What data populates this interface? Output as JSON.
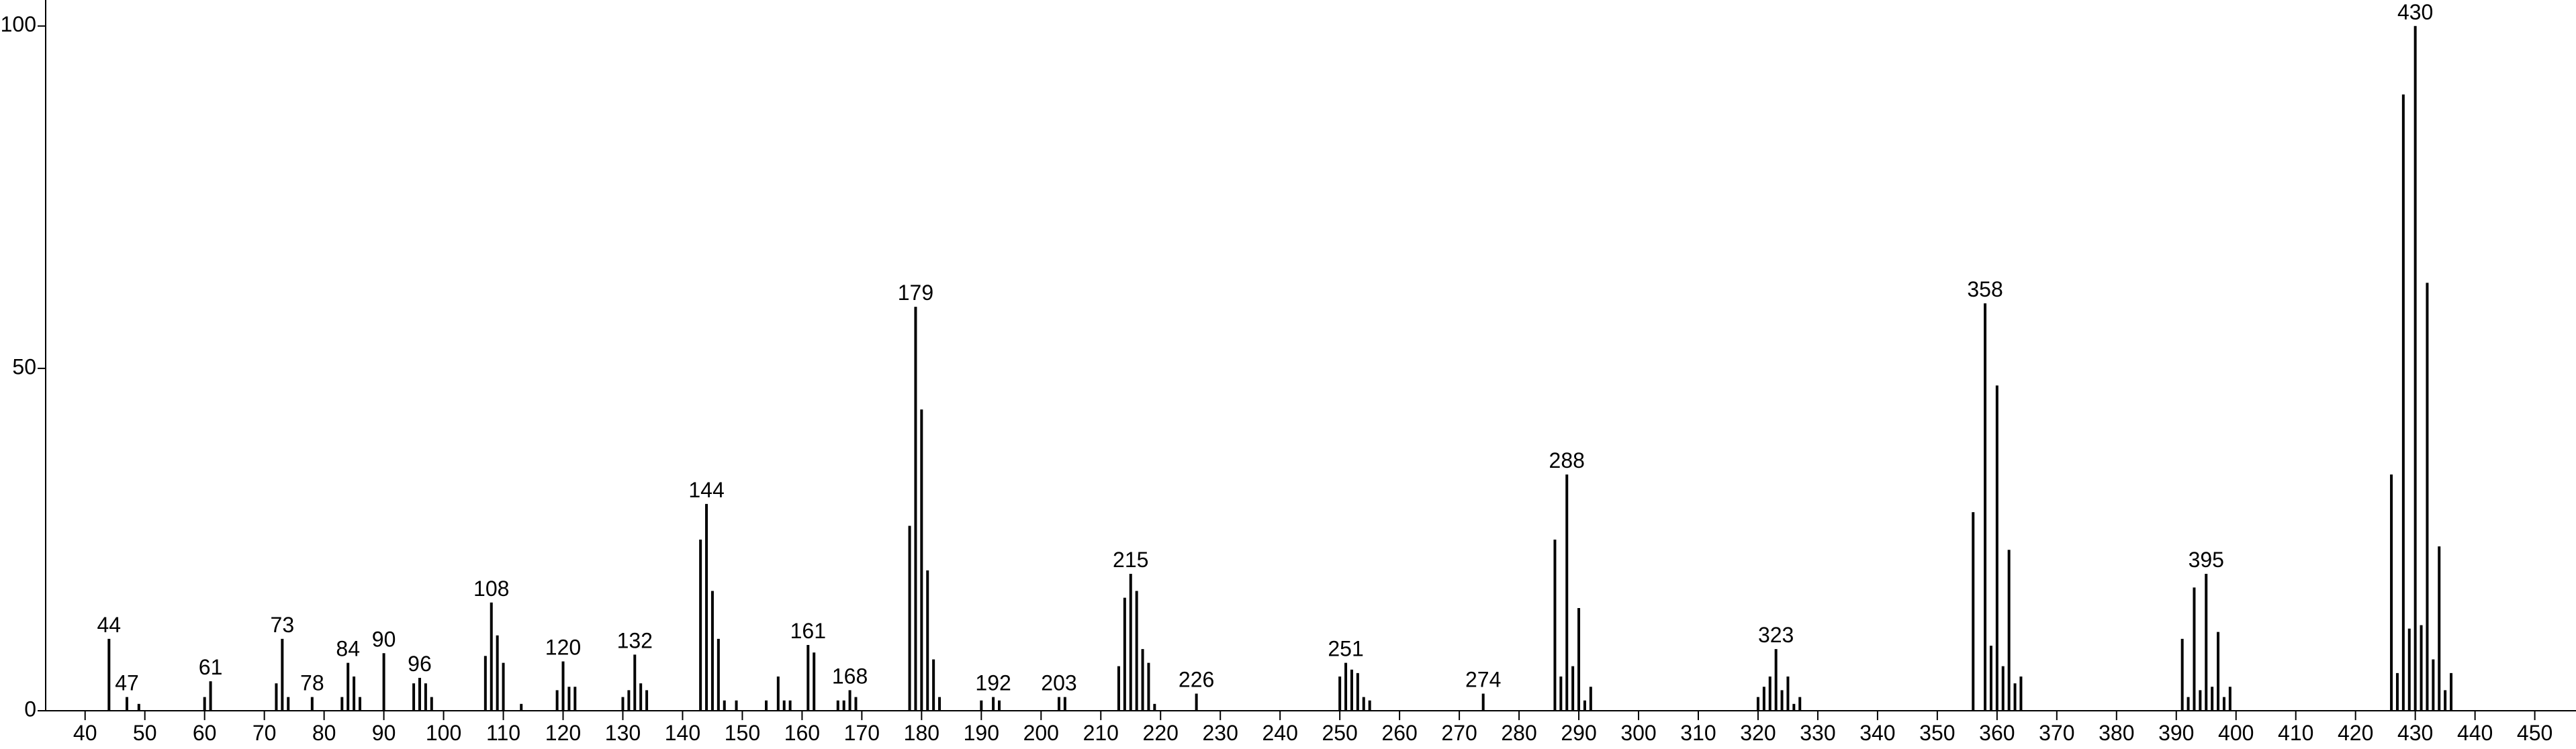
{
  "chart_data": {
    "type": "stem",
    "color": "#000000",
    "x": [
      44,
      47,
      49,
      60,
      61,
      72,
      73,
      74,
      78,
      83,
      84,
      85,
      86,
      90,
      95,
      96,
      97,
      98,
      107,
      108,
      109,
      110,
      113,
      119,
      120,
      121,
      122,
      130,
      131,
      132,
      133,
      134,
      143,
      144,
      145,
      146,
      147,
      149,
      154,
      156,
      157,
      158,
      161,
      162,
      166,
      167,
      168,
      169,
      178,
      179,
      180,
      181,
      182,
      183,
      190,
      192,
      193,
      203,
      204,
      213,
      214,
      215,
      216,
      217,
      218,
      219,
      226,
      250,
      251,
      252,
      253,
      254,
      255,
      274,
      286,
      287,
      288,
      289,
      290,
      291,
      292,
      320,
      321,
      322,
      323,
      324,
      325,
      326,
      327,
      356,
      358,
      359,
      360,
      361,
      362,
      363,
      364,
      391,
      392,
      393,
      394,
      395,
      396,
      397,
      398,
      399,
      426,
      427,
      428,
      429,
      430,
      431,
      432,
      433,
      434,
      435,
      436
    ],
    "values": [
      10.5,
      2,
      1,
      2,
      4.3,
      4,
      10.5,
      2,
      2,
      2,
      7,
      5,
      2,
      8.4,
      4,
      4.8,
      4,
      2,
      8,
      15.8,
      11,
      7,
      1,
      3,
      7.2,
      3.5,
      3.5,
      2,
      3,
      8.2,
      4,
      3,
      25,
      30.2,
      17.5,
      10.5,
      1.5,
      1.5,
      1.5,
      5,
      1.5,
      1.5,
      9.6,
      8.5,
      1.5,
      1.5,
      3,
      2,
      27,
      59,
      44,
      20.5,
      7.5,
      2,
      1.5,
      2,
      1.5,
      2,
      2,
      6.5,
      16.5,
      20,
      17.5,
      9,
      7,
      1,
      2.5,
      5,
      7,
      6,
      5.5,
      2,
      1.5,
      2.5,
      25,
      5,
      34.5,
      6.5,
      15,
      1.5,
      3.5,
      2,
      3.5,
      5,
      9,
      3,
      5,
      1,
      2,
      29,
      59.5,
      9.5,
      47.5,
      6.5,
      23.5,
      4,
      5,
      10.5,
      2,
      18,
      3,
      20,
      3.5,
      11.5,
      2,
      3.5,
      34.5,
      5.5,
      90,
      12,
      100,
      12.5,
      62.5,
      7.5,
      24,
      3,
      5.5
    ],
    "point_labels": [
      44,
      47,
      null,
      null,
      61,
      null,
      73,
      null,
      78,
      null,
      84,
      null,
      null,
      90,
      null,
      96,
      null,
      null,
      null,
      108,
      null,
      null,
      null,
      null,
      120,
      null,
      null,
      null,
      null,
      132,
      null,
      null,
      null,
      144,
      null,
      null,
      null,
      null,
      null,
      null,
      null,
      null,
      161,
      null,
      null,
      null,
      168,
      null,
      null,
      179,
      null,
      null,
      null,
      null,
      null,
      192,
      null,
      203,
      null,
      null,
      null,
      215,
      null,
      null,
      null,
      null,
      226,
      null,
      251,
      null,
      null,
      null,
      null,
      274,
      null,
      null,
      288,
      null,
      null,
      null,
      null,
      null,
      null,
      null,
      323,
      null,
      null,
      null,
      null,
      null,
      358,
      null,
      null,
      null,
      null,
      null,
      null,
      null,
      null,
      null,
      null,
      395,
      null,
      null,
      null,
      null,
      null,
      null,
      null,
      null,
      430,
      null,
      null,
      null,
      null,
      null,
      null
    ],
    "xlim": [
      33.4,
      456.9
    ],
    "ylim": [
      0,
      103.8
    ],
    "xticks": [
      40,
      50,
      60,
      70,
      80,
      90,
      100,
      110,
      120,
      130,
      140,
      150,
      160,
      170,
      180,
      190,
      200,
      210,
      220,
      230,
      240,
      250,
      260,
      270,
      280,
      290,
      300,
      310,
      320,
      330,
      340,
      350,
      360,
      370,
      380,
      390,
      400,
      410,
      420,
      430,
      440,
      450
    ],
    "yticks": [
      0,
      50,
      100
    ]
  }
}
